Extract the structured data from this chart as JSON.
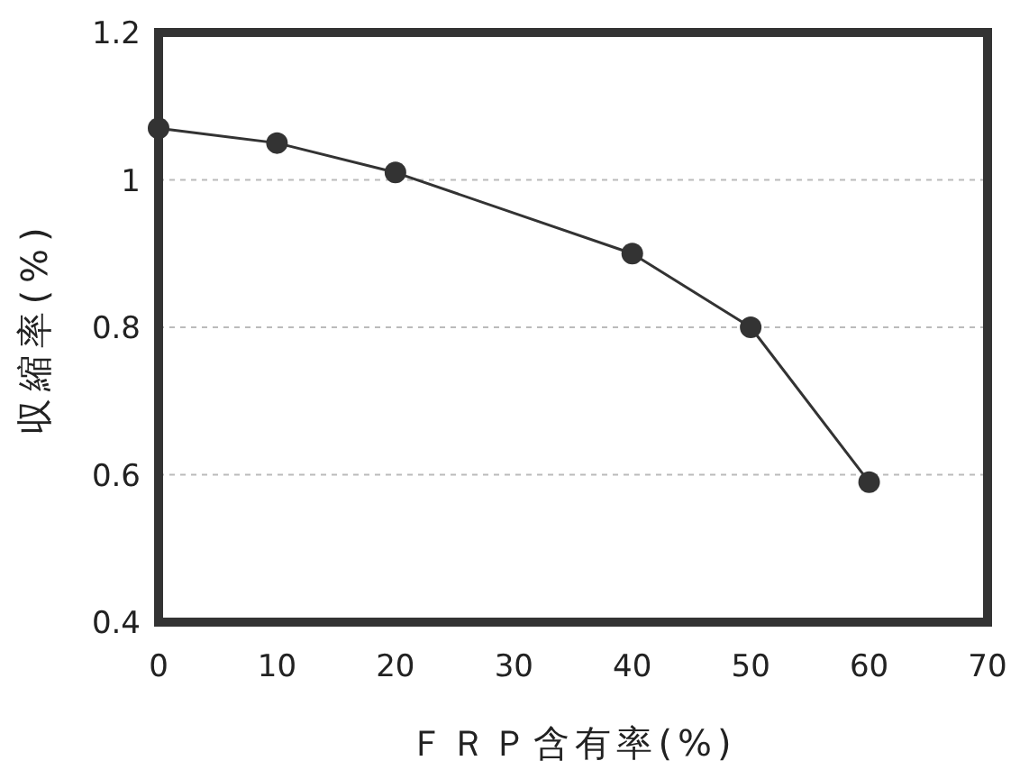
{
  "chart_data": {
    "type": "line",
    "xlabel": "ＦＲＰ含有率(%)",
    "ylabel": "収縮率(%)",
    "x": [
      0,
      10,
      20,
      40,
      50,
      60
    ],
    "series": [
      {
        "color": "#333333",
        "values": [
          1.07,
          1.05,
          1.01,
          0.9,
          0.8,
          0.59
        ]
      }
    ],
    "xlim": [
      0,
      70
    ],
    "xticks": [
      0,
      10,
      20,
      30,
      40,
      50,
      60,
      70
    ],
    "ylim": [
      0.4,
      1.2
    ],
    "yticks": [
      0.4,
      0.6,
      0.8,
      1,
      1.2
    ],
    "grid": "y",
    "marker": "circle",
    "line_style": "solid"
  }
}
